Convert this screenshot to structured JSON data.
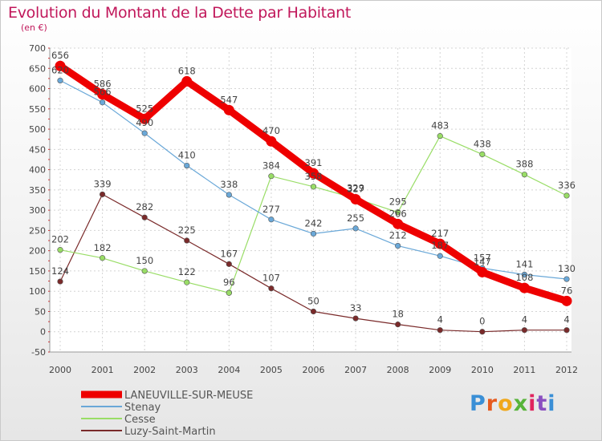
{
  "title": "Evolution du Montant de la Dette par Habitant",
  "subtitle": "(en €)",
  "logo": {
    "text": "Proxiti",
    "colors": [
      "#3a8fd6",
      "#e65a1e",
      "#f0a81c",
      "#58b43a",
      "#e0245e",
      "#8a4fc0",
      "#3a8fd6"
    ]
  },
  "chart_data": {
    "type": "line",
    "x": [
      "2000",
      "2001",
      "2002",
      "2003",
      "2004",
      "2005",
      "2006",
      "2007",
      "2008",
      "2009",
      "2010",
      "2011",
      "2012"
    ],
    "ylim": [
      -50,
      700
    ],
    "yticks": [
      -50,
      0,
      50,
      100,
      150,
      200,
      250,
      300,
      350,
      400,
      450,
      500,
      550,
      600,
      650,
      700
    ],
    "grid": true,
    "legend": "bottom-left",
    "series": [
      {
        "name": "Luzy-Saint-Martin",
        "color": "#7a2a2a",
        "width": 1.2,
        "values": [
          124,
          339,
          282,
          225,
          167,
          107,
          50,
          33,
          18,
          4,
          0,
          4,
          4
        ],
        "labels": [
          "124",
          "339",
          "282",
          "225",
          "167",
          "107",
          "50",
          "33",
          "18",
          "4",
          "0",
          "4",
          "4"
        ]
      },
      {
        "name": "Cesse",
        "color": "#99dd66",
        "width": 1.2,
        "values": [
          202,
          182,
          150,
          122,
          96,
          null,
          null,
          null,
          null,
          null,
          null,
          null,
          null
        ],
        "labels": [
          "202",
          "182",
          "150",
          "122",
          "96",
          "",
          "",
          "",
          "",
          "",
          "",
          "",
          ""
        ]
      },
      {
        "name": "Cesse",
        "color": "#99dd66",
        "width": 1.2,
        "values": [
          null,
          null,
          null,
          null,
          96,
          384,
          358,
          329,
          295,
          483,
          438,
          388,
          336
        ],
        "labels": [
          "",
          "",
          "",
          "",
          "",
          "384",
          "358",
          "329",
          "295",
          "483",
          "438",
          "388",
          "336"
        ]
      },
      {
        "name": "Stenay",
        "color": "#6aa8d8",
        "width": 1.2,
        "values": [
          620,
          566,
          490,
          410,
          338,
          277,
          242,
          255,
          212,
          187,
          157,
          141,
          130
        ],
        "labels": [
          "620",
          "566",
          "490",
          "410",
          "338",
          "277",
          "242",
          "255",
          "212",
          "187",
          "157",
          "141",
          "130"
        ]
      },
      {
        "name": "LANEUVILLE-SUR-MEUSE",
        "color": "#ee0000",
        "width": 9,
        "values": [
          656,
          586,
          525,
          618,
          547,
          470,
          391,
          327,
          266,
          217,
          147,
          108,
          76
        ],
        "labels": [
          "656",
          "586",
          "525",
          "618",
          "547",
          "470",
          "391",
          "327",
          "266",
          "217",
          "147",
          "108",
          "76"
        ]
      }
    ],
    "legend_entries": [
      {
        "name": "LANEUVILLE-SUR-MEUSE",
        "color": "#ee0000",
        "width": 9
      },
      {
        "name": "Stenay",
        "color": "#6aa8d8",
        "width": 2
      },
      {
        "name": "Cesse",
        "color": "#99dd66",
        "width": 2
      },
      {
        "name": "Luzy-Saint-Martin",
        "color": "#7a2a2a",
        "width": 2
      }
    ]
  }
}
